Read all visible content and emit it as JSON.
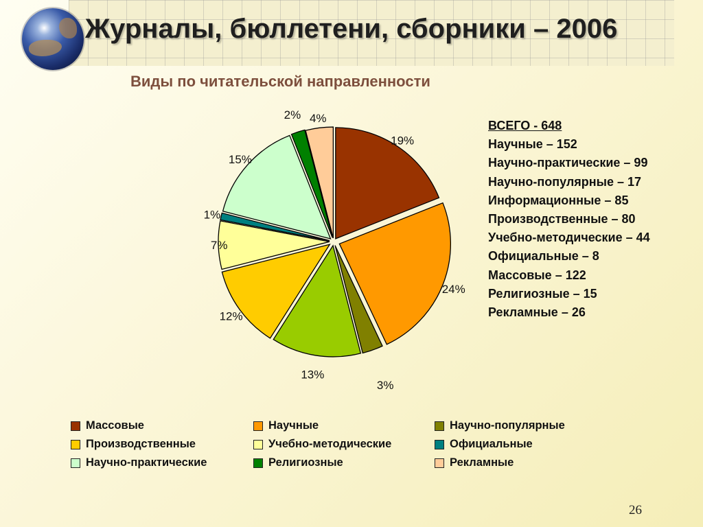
{
  "title": "Журналы, бюллетени, сборники – 2006",
  "subtitle": "Виды по читательской направленности",
  "page_number": "26",
  "totals": {
    "total": "ВСЕГО - 648",
    "lines": [
      "Научные – 152",
      "Научно-практические – 99",
      "Научно-популярные – 17",
      "Информационные – 85",
      "Производственные – 80",
      "Учебно-методические – 44",
      "Официальные – 8",
      "Массовые – 122",
      "Религиозные – 15",
      "Рекламные – 26"
    ]
  },
  "legend": [
    {
      "label": "Массовые",
      "color": "#993300"
    },
    {
      "label": "Научные",
      "color": "#ff9900"
    },
    {
      "label": "Научно-популярные",
      "color": "#808000"
    },
    {
      "label": "Производственные",
      "color": "#ffcc00"
    },
    {
      "label": "Учебно-методические",
      "color": "#ffff99"
    },
    {
      "label": "Официальные",
      "color": "#008080"
    },
    {
      "label": "Научно-практические",
      "color": "#ccffcc"
    },
    {
      "label": "Религиозные",
      "color": "#008000"
    },
    {
      "label": "Рекламные",
      "color": "#ffcc99"
    }
  ],
  "chart_data": {
    "type": "pie",
    "slices": [
      {
        "name": "Массовые",
        "value": 19,
        "label": "19%",
        "color": "#993300"
      },
      {
        "name": "Научные",
        "value": 24,
        "label": "24%",
        "color": "#ff9900"
      },
      {
        "name": "Научно-популярные",
        "value": 3,
        "label": "3%",
        "color": "#808000"
      },
      {
        "name": "Информационные",
        "value": 13,
        "label": "13%",
        "color": "#99cc00"
      },
      {
        "name": "Производственные",
        "value": 12,
        "label": "12%",
        "color": "#ffcc00"
      },
      {
        "name": "Учебно-методические",
        "value": 7,
        "label": "7%",
        "color": "#ffff99"
      },
      {
        "name": "Официальные",
        "value": 1,
        "label": "1%",
        "color": "#008080"
      },
      {
        "name": "Научно-практические",
        "value": 15,
        "label": "15%",
        "color": "#ccffcc"
      },
      {
        "name": "Религиозные",
        "value": 2,
        "label": "2%",
        "color": "#008000"
      },
      {
        "name": "Рекламные",
        "value": 4,
        "label": "4%",
        "color": "#ffcc99"
      }
    ],
    "legend_position": "bottom"
  }
}
